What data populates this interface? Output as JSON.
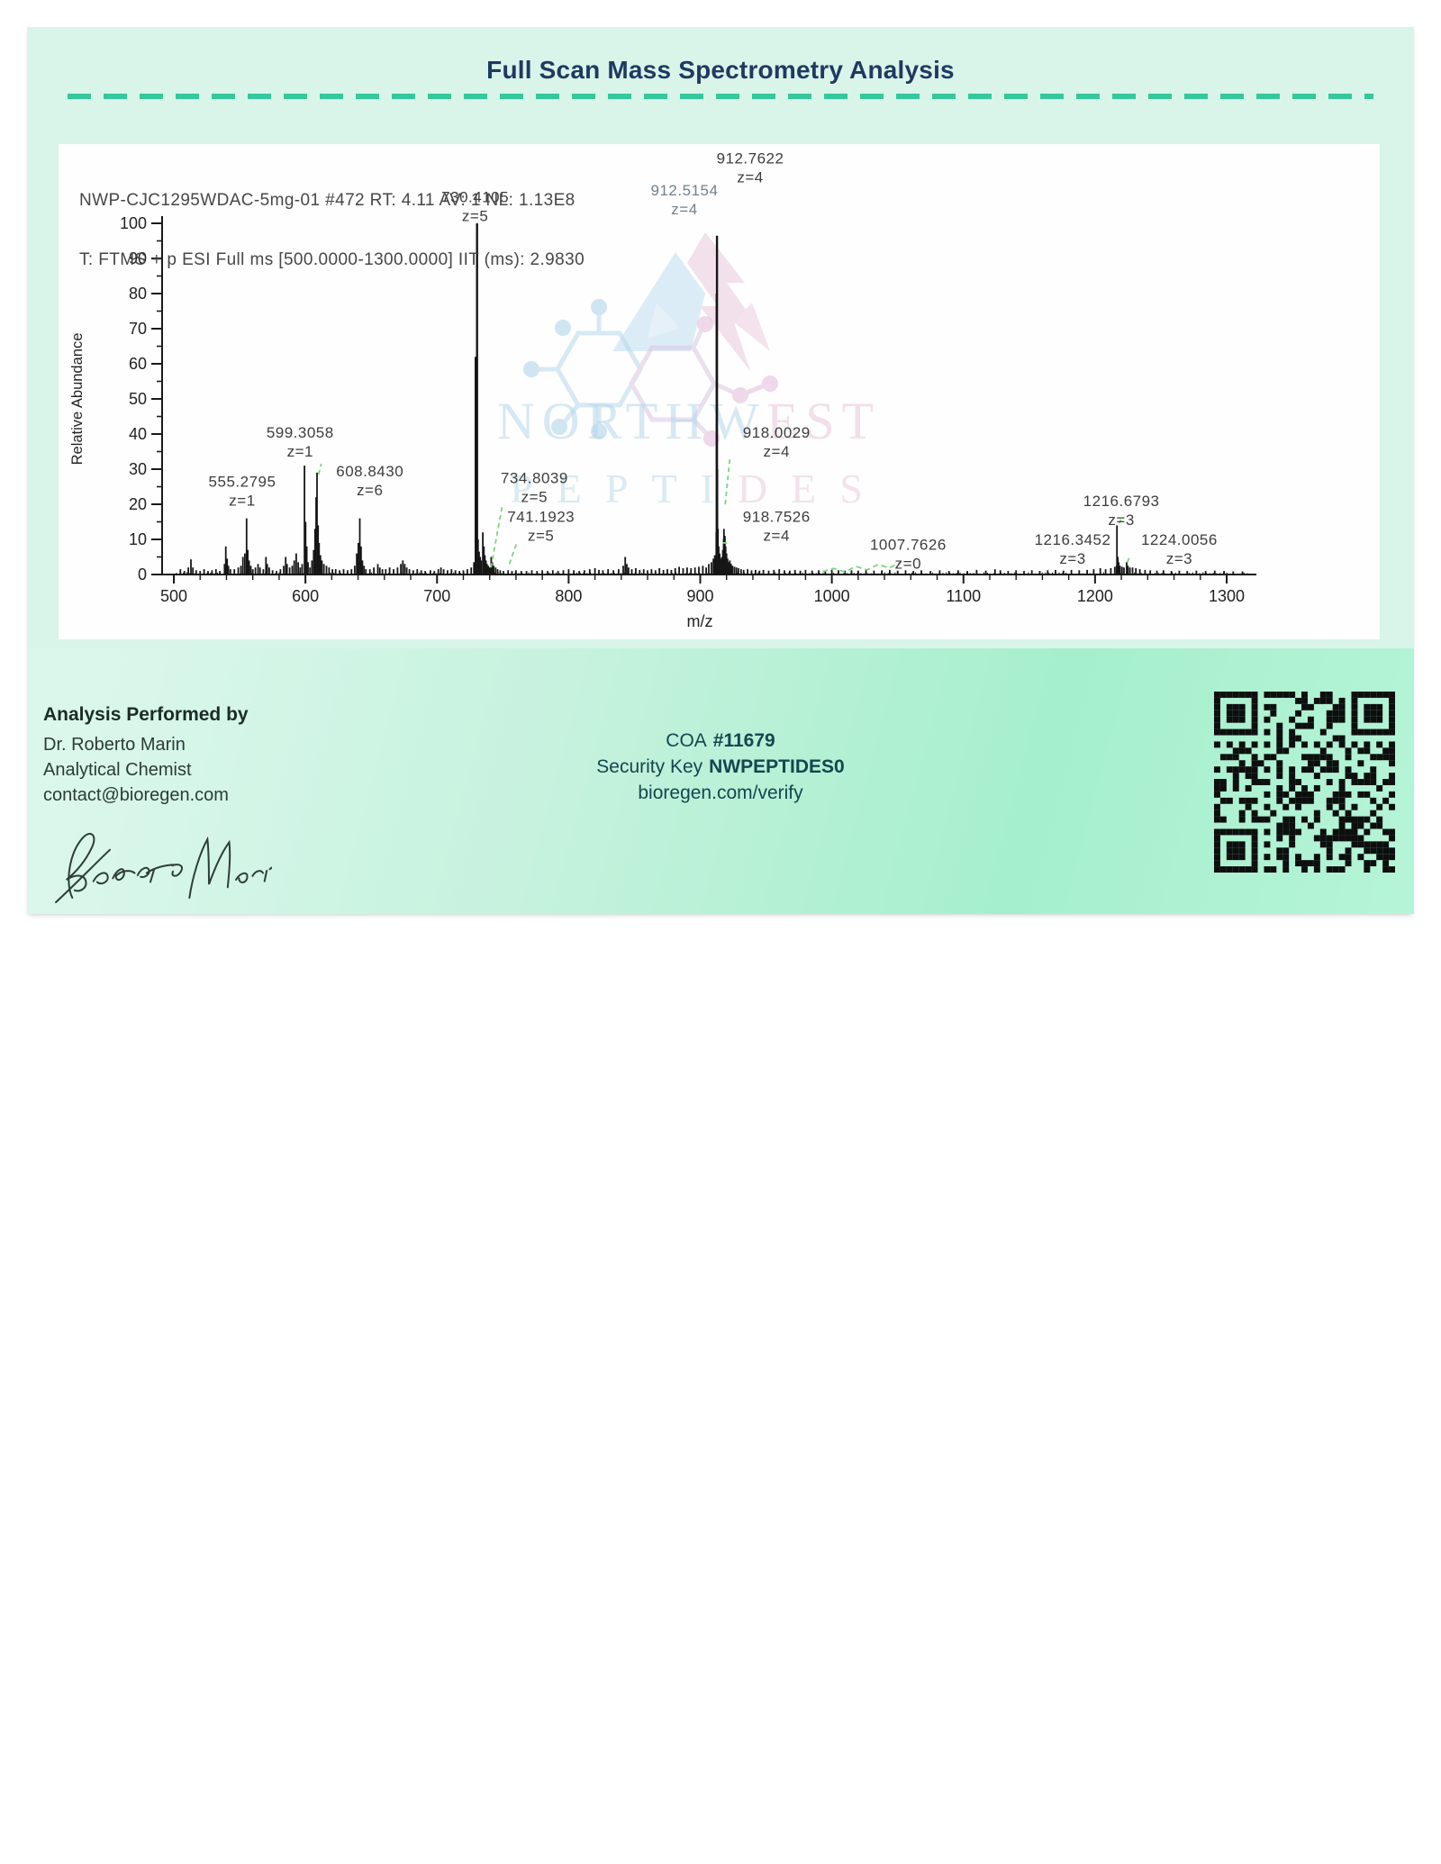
{
  "header": {
    "title": "Full Scan Mass Spectrometry Analysis"
  },
  "chart_data": {
    "type": "bar",
    "subtype": "mass-spectrum-stick-plot",
    "header_line1": "NWP-CJC1295WDAC-5mg-01 #472 RT: 4.11 AV: 1 NL: 1.13E8",
    "header_line2": "T: FTMS + p ESI Full ms [500.0000-1300.0000] IIT (ms): 2.9830",
    "xlabel": "m/z",
    "ylabel": "Relative Abundance",
    "xlim": [
      490,
      1320
    ],
    "ylim": [
      0,
      100
    ],
    "x_ticks": [
      500,
      600,
      700,
      800,
      900,
      1000,
      1100,
      1200,
      1300
    ],
    "x_minor_step": 20,
    "y_ticks": [
      0,
      10,
      20,
      30,
      40,
      50,
      60,
      70,
      80,
      90,
      100
    ],
    "y_minor_step": 5,
    "grid": false,
    "colors": {
      "peak": "#161616",
      "axis": "#1a1a1a",
      "label": "#3d3d3d",
      "muted_label": "#72808e",
      "fit": "#7bd67f",
      "tick_text": "#222222"
    },
    "peaks": [
      [
        505,
        1.5
      ],
      [
        508,
        1
      ],
      [
        511,
        2
      ],
      [
        513,
        4.3
      ],
      [
        514.5,
        2
      ],
      [
        517,
        1.2
      ],
      [
        520,
        1
      ],
      [
        523,
        1.5
      ],
      [
        526,
        1
      ],
      [
        529,
        1.2
      ],
      [
        532,
        1.5
      ],
      [
        535,
        1
      ],
      [
        538.5,
        3
      ],
      [
        539.5,
        8
      ],
      [
        540.5,
        4.5
      ],
      [
        541.5,
        2.5
      ],
      [
        543,
        1.5
      ],
      [
        546,
        1.5
      ],
      [
        549,
        2
      ],
      [
        551,
        2.5
      ],
      [
        552.5,
        5
      ],
      [
        554,
        6
      ],
      [
        555.2795,
        16
      ],
      [
        556.2,
        7
      ],
      [
        557.2,
        4
      ],
      [
        558.5,
        2.5
      ],
      [
        560,
        1.5
      ],
      [
        562,
        2
      ],
      [
        564,
        3
      ],
      [
        565.5,
        2
      ],
      [
        568,
        1.5
      ],
      [
        570,
        5
      ],
      [
        571,
        3
      ],
      [
        572.5,
        2
      ],
      [
        575,
        1.2
      ],
      [
        578,
        1
      ],
      [
        581,
        1.5
      ],
      [
        583.5,
        2.5
      ],
      [
        585,
        5
      ],
      [
        586,
        3
      ],
      [
        588,
        2
      ],
      [
        590,
        2.5
      ],
      [
        591.5,
        4
      ],
      [
        593,
        6
      ],
      [
        594.5,
        3.5
      ],
      [
        596,
        2
      ],
      [
        597.5,
        3
      ],
      [
        599.3058,
        31
      ],
      [
        600.1,
        15
      ],
      [
        601,
        8
      ],
      [
        602,
        3.5
      ],
      [
        603.5,
        2
      ],
      [
        605,
        4
      ],
      [
        606.3,
        7
      ],
      [
        607.3,
        13
      ],
      [
        608.1,
        22
      ],
      [
        608.843,
        29
      ],
      [
        609.6,
        14
      ],
      [
        610.4,
        9
      ],
      [
        611.4,
        5.5
      ],
      [
        612.5,
        4
      ],
      [
        614,
        3
      ],
      [
        616,
        2.5
      ],
      [
        618,
        2
      ],
      [
        620.5,
        1.5
      ],
      [
        623,
        1.5
      ],
      [
        626,
        1.2
      ],
      [
        629,
        1.5
      ],
      [
        632,
        1.2
      ],
      [
        635,
        1.5
      ],
      [
        637.5,
        2.5
      ],
      [
        639,
        6
      ],
      [
        640.2,
        9
      ],
      [
        641.3,
        16
      ],
      [
        642.3,
        8
      ],
      [
        643.3,
        4
      ],
      [
        644.5,
        2.5
      ],
      [
        646,
        1.5
      ],
      [
        649,
        1.5
      ],
      [
        652,
        2
      ],
      [
        655,
        3
      ],
      [
        656.5,
        2
      ],
      [
        658.5,
        1.5
      ],
      [
        661,
        1.5
      ],
      [
        664,
        2
      ],
      [
        667,
        1.5
      ],
      [
        670,
        2
      ],
      [
        672.5,
        3
      ],
      [
        674,
        4
      ],
      [
        675.5,
        3
      ],
      [
        677,
        2
      ],
      [
        679,
        1.5
      ],
      [
        682,
        1.2
      ],
      [
        685,
        1.5
      ],
      [
        688,
        1.2
      ],
      [
        691,
        1
      ],
      [
        695,
        1.2
      ],
      [
        698,
        1
      ],
      [
        701,
        1.5
      ],
      [
        703,
        2
      ],
      [
        705,
        1.5
      ],
      [
        708,
        1.2
      ],
      [
        711,
        1.5
      ],
      [
        714,
        1.2
      ],
      [
        717,
        1
      ],
      [
        720,
        1.2
      ],
      [
        723,
        1.5
      ],
      [
        726,
        2
      ],
      [
        728,
        3.5
      ],
      [
        729.4,
        62
      ],
      [
        730.4105,
        100
      ],
      [
        731.2,
        10
      ],
      [
        732,
        6.5
      ],
      [
        732.8,
        5
      ],
      [
        733.6,
        4
      ],
      [
        734.8039,
        12
      ],
      [
        735.6,
        8
      ],
      [
        736.4,
        5.5
      ],
      [
        737.2,
        4
      ],
      [
        738,
        3
      ],
      [
        739,
        2.5
      ],
      [
        740,
        2
      ],
      [
        741.1923,
        5
      ],
      [
        742,
        3.5
      ],
      [
        743,
        2.5
      ],
      [
        744.5,
        2
      ],
      [
        746,
        1.5
      ],
      [
        748,
        1.2
      ],
      [
        750.5,
        1
      ],
      [
        754,
        1.2
      ],
      [
        757,
        1
      ],
      [
        760,
        1.2
      ],
      [
        764,
        1
      ],
      [
        768,
        1
      ],
      [
        772,
        1.2
      ],
      [
        776,
        1
      ],
      [
        780,
        1.2
      ],
      [
        784,
        1
      ],
      [
        788,
        1.2
      ],
      [
        792,
        1
      ],
      [
        796,
        1.2
      ],
      [
        800,
        1.5
      ],
      [
        804,
        1.2
      ],
      [
        808,
        1
      ],
      [
        812,
        1.2
      ],
      [
        816,
        1.5
      ],
      [
        820,
        1.8
      ],
      [
        823,
        1.3
      ],
      [
        826,
        1.2
      ],
      [
        830,
        1.5
      ],
      [
        834,
        1.2
      ],
      [
        838,
        1.5
      ],
      [
        841.5,
        2.5
      ],
      [
        843,
        5
      ],
      [
        844.2,
        3
      ],
      [
        845.5,
        2
      ],
      [
        848,
        1.5
      ],
      [
        851,
        1.8
      ],
      [
        854,
        1.3
      ],
      [
        857,
        1.5
      ],
      [
        860,
        1.2
      ],
      [
        863,
        1.5
      ],
      [
        866,
        1.2
      ],
      [
        869,
        1.8
      ],
      [
        872,
        1.3
      ],
      [
        875,
        1.5
      ],
      [
        878,
        1.3
      ],
      [
        881,
        1.8
      ],
      [
        884,
        2.2
      ],
      [
        887,
        1.8
      ],
      [
        890,
        2
      ],
      [
        893,
        1.8
      ],
      [
        896,
        2
      ],
      [
        899,
        2.2
      ],
      [
        902,
        2.5
      ],
      [
        904.5,
        2
      ],
      [
        906.5,
        3
      ],
      [
        908.5,
        3.5
      ],
      [
        910,
        4.5
      ],
      [
        911,
        5.5
      ],
      [
        912.2,
        12
      ],
      [
        912.5154,
        80
      ],
      [
        912.7622,
        96.5
      ],
      [
        913.1,
        30
      ],
      [
        913.5,
        13
      ],
      [
        914,
        8
      ],
      [
        914.8,
        6
      ],
      [
        915.6,
        4.5
      ],
      [
        916.4,
        5
      ],
      [
        917.2,
        7
      ],
      [
        917.8,
        10
      ],
      [
        918.0029,
        13
      ],
      [
        918.7526,
        11
      ],
      [
        919.3,
        8
      ],
      [
        920,
        6
      ],
      [
        920.8,
        4.5
      ],
      [
        921.6,
        3.5
      ],
      [
        922.5,
        4
      ],
      [
        923.5,
        3
      ],
      [
        924.5,
        2.5
      ],
      [
        926,
        2.2
      ],
      [
        927.5,
        2
      ],
      [
        929,
        1.8
      ],
      [
        931,
        1.5
      ],
      [
        933,
        1.3
      ],
      [
        936,
        1.5
      ],
      [
        939,
        1.2
      ],
      [
        942,
        1.3
      ],
      [
        945,
        1.1
      ],
      [
        948,
        1.3
      ],
      [
        952,
        1.1
      ],
      [
        956,
        1.3
      ],
      [
        960,
        1.5
      ],
      [
        964,
        1.2
      ],
      [
        968,
        1.1
      ],
      [
        972,
        1.3
      ],
      [
        976,
        1.1
      ],
      [
        980,
        1.3
      ],
      [
        985,
        1.1
      ],
      [
        990,
        1.2
      ],
      [
        995,
        1.1
      ],
      [
        1000,
        1.3
      ],
      [
        1005,
        1.2
      ],
      [
        1010,
        1.1
      ],
      [
        1015,
        1.2
      ],
      [
        1020,
        1.1
      ],
      [
        1026,
        1.3
      ],
      [
        1032,
        1.1
      ],
      [
        1038,
        1.2
      ],
      [
        1044,
        1.3
      ],
      [
        1050,
        1.1
      ],
      [
        1056,
        1.2
      ],
      [
        1062,
        1
      ],
      [
        1068,
        1.2
      ],
      [
        1075,
        1
      ],
      [
        1082,
        1.2
      ],
      [
        1089,
        1
      ],
      [
        1096,
        1.2
      ],
      [
        1103,
        1
      ],
      [
        1110,
        1.3
      ],
      [
        1117,
        1.1
      ],
      [
        1124,
        1.5
      ],
      [
        1128,
        1.2
      ],
      [
        1134,
        1
      ],
      [
        1140,
        1.2
      ],
      [
        1146,
        1
      ],
      [
        1152,
        1.2
      ],
      [
        1158,
        1
      ],
      [
        1164,
        1.2
      ],
      [
        1170,
        1.3
      ],
      [
        1176,
        1.1
      ],
      [
        1182,
        1.3
      ],
      [
        1188,
        1.2
      ],
      [
        1194,
        1.3
      ],
      [
        1199,
        1.5
      ],
      [
        1204,
        1.8
      ],
      [
        1208,
        1.5
      ],
      [
        1212,
        1.8
      ],
      [
        1215,
        2.2
      ],
      [
        1216.3452,
        2.5
      ],
      [
        1216.6793,
        14
      ],
      [
        1217.3,
        5
      ],
      [
        1218,
        3.5
      ],
      [
        1219,
        2.5
      ],
      [
        1220.5,
        2.2
      ],
      [
        1222,
        2
      ],
      [
        1224.0056,
        3.5
      ],
      [
        1225,
        2.5
      ],
      [
        1226.5,
        2
      ],
      [
        1228.5,
        2
      ],
      [
        1231,
        1.8
      ],
      [
        1234,
        1.5
      ],
      [
        1238,
        1.3
      ],
      [
        1242,
        1.2
      ],
      [
        1247,
        1.1
      ],
      [
        1252,
        1.2
      ],
      [
        1258,
        1
      ],
      [
        1264,
        1.1
      ],
      [
        1270,
        1
      ],
      [
        1277,
        1.1
      ],
      [
        1284,
        1
      ],
      [
        1291,
        1.1
      ],
      [
        1298,
        1
      ],
      [
        1305,
        0.9
      ],
      [
        1312,
        0.9
      ]
    ],
    "labeled_peaks": [
      {
        "text": "555.2795",
        "z": "z=1",
        "x": 552,
        "y": 25
      },
      {
        "text": "599.3058",
        "z": "z=1",
        "x": 596,
        "y": 39
      },
      {
        "text": "608.8430",
        "z": "z=6",
        "x": 649,
        "y": 28
      },
      {
        "text": "730.4105",
        "z": "z=5",
        "x": 729,
        "y": 106
      },
      {
        "text": "734.8039",
        "z": "z=5",
        "x": 774,
        "y": 26
      },
      {
        "text": "741.1923",
        "z": "z=5",
        "x": 779,
        "y": 15
      },
      {
        "text": "912.5154",
        "z": "z=4",
        "x": 888,
        "y": 108,
        "muted": true
      },
      {
        "text": "912.7622",
        "z": "z=4",
        "x": 938,
        "y": 117
      },
      {
        "text": "918.0029",
        "z": "z=4",
        "x": 958,
        "y": 39
      },
      {
        "text": "918.7526",
        "z": "z=4",
        "x": 958,
        "y": 15
      },
      {
        "text": "1007.7626",
        "z": "z=0",
        "x": 1058,
        "y": 7
      },
      {
        "text": "1216.3452",
        "z": "z=3",
        "x": 1183,
        "y": 8.5
      },
      {
        "text": "1216.6793",
        "z": "z=3",
        "x": 1220,
        "y": 19.5
      },
      {
        "text": "1224.0056",
        "z": "z=3",
        "x": 1264,
        "y": 8.5
      }
    ],
    "fit_markers": [
      {
        "x1": 610,
        "y1": 28.5,
        "x2": 612,
        "y2": 31.5
      },
      {
        "x1": 741,
        "y1": 2,
        "x2": 749.5,
        "y2": 19.5
      },
      {
        "x1": 755,
        "y1": 3,
        "x2": 761,
        "y2": 9.5
      },
      {
        "x1": 919,
        "y1": 20,
        "x2": 922.5,
        "y2": 33
      },
      {
        "x1": 917,
        "y1": 9,
        "x2": 922,
        "y2": 9
      },
      {
        "x1": 993,
        "y1": 0.8,
        "x2": 1052,
        "y2": 2.8,
        "wavy": true
      },
      {
        "x1": 1218.5,
        "y1": 14.5,
        "x2": 1220.5,
        "y2": 16.5
      },
      {
        "x1": 1224.5,
        "y1": 3.5,
        "x2": 1227,
        "y2": 5.5
      }
    ]
  },
  "watermark": {
    "line1": "NORTHWEST",
    "line2": "PEPTIDES",
    "blue": "#b5d7ec",
    "pink": "#eac6da"
  },
  "footer": {
    "analyst": {
      "heading": "Analysis Performed by",
      "name": "Dr. Roberto Marin",
      "role": "Analytical Chemist",
      "email": "contact@bioregen.com",
      "signature_name": "Roberto Marin"
    },
    "coa": {
      "label": "COA",
      "number": "#11679"
    },
    "security": {
      "label": "Security Key",
      "key": "NWPEPTIDES0"
    },
    "verify_url": "bioregen.com/verify",
    "qr_alt": "verification-qr-code"
  },
  "theme": {
    "accent_teal": "#35c79e",
    "title_navy": "#1e3a5f",
    "mint_bg": "#d9f4e9",
    "footer_green": "#a5efcc"
  }
}
